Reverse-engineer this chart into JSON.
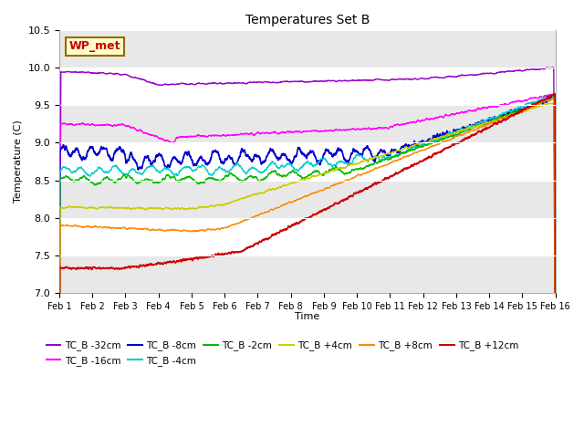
{
  "title": "Temperatures Set B",
  "xlabel": "Time",
  "ylabel": "Temperature (C)",
  "ylim": [
    7.0,
    10.5
  ],
  "xlim": [
    0,
    15
  ],
  "xtick_labels": [
    "Feb 1",
    "Feb 2",
    "Feb 3",
    "Feb 4",
    "Feb 5",
    "Feb 6",
    "Feb 7",
    "Feb 8",
    "Feb 9",
    "Feb 10",
    "Feb 11",
    "Feb 12",
    "Feb 13",
    "Feb 14",
    "Feb 15",
    "Feb 16"
  ],
  "ytick_values": [
    7.0,
    7.5,
    8.0,
    8.5,
    9.0,
    9.5,
    10.0,
    10.5
  ],
  "series": [
    {
      "label": "TC_B -32cm",
      "color": "#9900CC",
      "lw": 1.0
    },
    {
      "label": "TC_B -16cm",
      "color": "#FF00FF",
      "lw": 1.0
    },
    {
      "label": "TC_B -8cm",
      "color": "#0000CC",
      "lw": 1.2
    },
    {
      "label": "TC_B -4cm",
      "color": "#00CCCC",
      "lw": 1.0
    },
    {
      "label": "TC_B -2cm",
      "color": "#00BB00",
      "lw": 1.0
    },
    {
      "label": "TC_B +4cm",
      "color": "#CCCC00",
      "lw": 1.0
    },
    {
      "label": "TC_B +8cm",
      "color": "#FF8800",
      "lw": 1.0
    },
    {
      "label": "TC_B +12cm",
      "color": "#CC0000",
      "lw": 1.2
    }
  ],
  "annotation_text": "WP_met",
  "annotation_box_color": "#FFFFCC",
  "annotation_box_edge": "#996600",
  "annotation_text_color": "#CC0000",
  "fig_bg_color": "#FFFFFF",
  "plot_bg_color": "#FFFFFF",
  "band_colors": [
    "#E8E8E8",
    "#FFFFFF"
  ],
  "legend_ncol": 6,
  "legend_ncol2": 2
}
